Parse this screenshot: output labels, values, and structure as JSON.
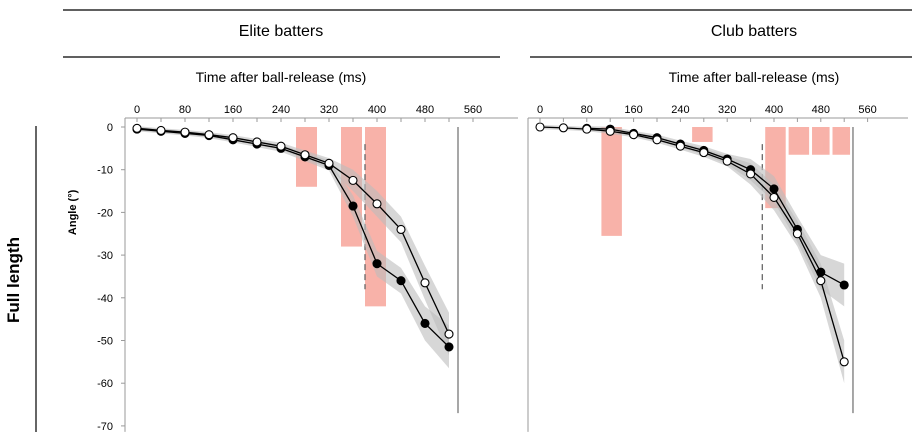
{
  "row_label": "Full length",
  "chart_data": [
    {
      "type": "line",
      "title": "Elite batters",
      "xlabel": "Time after ball-release (ms)",
      "ylabel": "Angle (°)",
      "xlim": [
        0,
        560
      ],
      "ylim": [
        -70,
        0
      ],
      "x_ticks": [
        "0",
        "40",
        "80",
        "120",
        "160",
        "200",
        "240",
        "280",
        "320",
        "360",
        "400",
        "440",
        "480",
        "520",
        "560"
      ],
      "x_ticks_shown": [
        "0",
        "80",
        "160",
        "240",
        "320",
        "400",
        "480",
        "560"
      ],
      "y_ticks": [
        "0",
        "-10",
        "-20",
        "-30",
        "-40",
        "-50",
        "-60",
        "-70"
      ],
      "bounce_time": 380,
      "contact_time": 535,
      "difference_bars": [
        {
          "x0": 265,
          "x1": 300,
          "value": -14
        },
        {
          "x0": 340,
          "x1": 375,
          "value": -28
        },
        {
          "x0": 380,
          "x1": 415,
          "value": -42
        }
      ],
      "series": [
        {
          "marker": "filled",
          "x": [
            0,
            40,
            80,
            120,
            160,
            200,
            240,
            280,
            320,
            360,
            400,
            440,
            480,
            520
          ],
          "y": [
            -0.5,
            -1,
            -1.5,
            -2,
            -3,
            -4,
            -5,
            -7,
            -9,
            -18.5,
            -32,
            -36,
            -46,
            -51.5
          ]
        },
        {
          "marker": "open",
          "x": [
            0,
            40,
            80,
            120,
            160,
            200,
            240,
            280,
            320,
            360,
            400,
            440,
            480,
            520
          ],
          "y": [
            -0.3,
            -0.8,
            -1.2,
            -1.8,
            -2.5,
            -3.5,
            -4.5,
            -6.5,
            -8.5,
            -12.5,
            -18,
            -24,
            -36.5,
            -48.5
          ]
        }
      ]
    },
    {
      "type": "line",
      "title": "Club batters",
      "xlabel": "Time after ball-release (ms)",
      "ylabel": "",
      "xlim": [
        0,
        560
      ],
      "ylim": [
        -70,
        0
      ],
      "x_ticks": [
        "0",
        "40",
        "80",
        "120",
        "160",
        "200",
        "240",
        "280",
        "320",
        "360",
        "400",
        "440",
        "480",
        "520",
        "560"
      ],
      "x_ticks_shown": [
        "0",
        "80",
        "160",
        "240",
        "320",
        "400",
        "480",
        "560"
      ],
      "y_ticks": [],
      "bounce_time": 380,
      "contact_time": 535,
      "difference_bars": [
        {
          "x0": 105,
          "x1": 140,
          "value": -25.5
        },
        {
          "x0": 260,
          "x1": 295,
          "value": -3.5
        },
        {
          "x0": 385,
          "x1": 420,
          "value": -19
        },
        {
          "x0": 425,
          "x1": 460,
          "value": -6.5
        },
        {
          "x0": 465,
          "x1": 495,
          "value": -6.5
        },
        {
          "x0": 500,
          "x1": 530,
          "value": -6.5
        }
      ],
      "series": [
        {
          "marker": "filled",
          "x": [
            80,
            120,
            160,
            200,
            240,
            280,
            320,
            360,
            400,
            440,
            480,
            520
          ],
          "y": [
            -0.3,
            -0.5,
            -1.5,
            -2.5,
            -4,
            -5.5,
            -7.5,
            -10,
            -14.5,
            -24,
            -34,
            -37
          ]
        },
        {
          "marker": "open",
          "x": [
            0,
            40,
            80,
            120,
            160,
            200,
            240,
            280,
            320,
            360,
            400,
            440,
            480,
            520
          ],
          "y": [
            0,
            -0.2,
            -0.5,
            -1,
            -1.8,
            -3,
            -4.5,
            -6,
            -8,
            -11,
            -16.5,
            -25,
            -36,
            -55
          ]
        }
      ]
    }
  ]
}
